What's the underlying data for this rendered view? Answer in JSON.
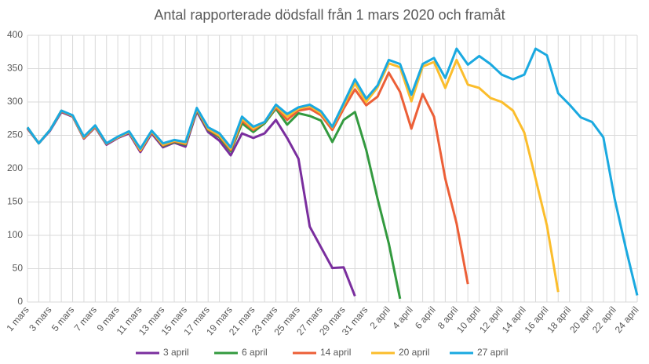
{
  "chart_data": {
    "type": "line",
    "title": "Antal rapporterade dödsfall från 1 mars 2020 och framåt",
    "categories": [
      "1 mars",
      null,
      "3 mars",
      null,
      "5 mars",
      null,
      "7 mars",
      null,
      "9 mars",
      null,
      "11 mars",
      null,
      "13 mars",
      null,
      "15 mars",
      null,
      "17 mars",
      null,
      "19 mars",
      null,
      "21 mars",
      null,
      "23 mars",
      null,
      "25 mars",
      null,
      "27 mars",
      null,
      "29 mars",
      null,
      "31 mars",
      null,
      "2 april",
      null,
      "4 april",
      null,
      "6 april",
      null,
      "8 april",
      null,
      "10 april",
      null,
      "12 april",
      null,
      "14 april",
      null,
      "16 april",
      null,
      "18 april",
      null,
      "20 april",
      null,
      "22 april",
      null,
      "24 april"
    ],
    "ylim": [
      0,
      400
    ],
    "yticks": [
      0,
      50,
      100,
      150,
      200,
      250,
      300,
      350,
      400
    ],
    "grid": true,
    "legend": "bottom",
    "series": [
      {
        "name": "3 april",
        "color": "#7a2e9e",
        "values": [
          260,
          238,
          257,
          285,
          278,
          245,
          262,
          236,
          246,
          253,
          225,
          253,
          232,
          239,
          233,
          286,
          255,
          242,
          220,
          253,
          246,
          253,
          273,
          246,
          215,
          113,
          82,
          51,
          52,
          9,
          null,
          null,
          null,
          null,
          null,
          null,
          null,
          null,
          null,
          null,
          null,
          null,
          null,
          null,
          null,
          null,
          null,
          null,
          null,
          null,
          null,
          null,
          null,
          null,
          null
        ]
      },
      {
        "name": "6 april",
        "color": "#339a3f",
        "values": [
          261,
          238,
          258,
          286,
          279,
          246,
          263,
          237,
          247,
          255,
          227,
          255,
          234,
          240,
          236,
          288,
          258,
          247,
          226,
          268,
          255,
          268,
          290,
          266,
          283,
          279,
          272,
          240,
          273,
          285,
          228,
          155,
          88,
          5,
          null,
          null,
          null,
          null,
          null,
          null,
          null,
          null,
          null,
          null,
          null,
          null,
          null,
          null,
          null,
          null,
          null,
          null,
          null,
          null,
          null
        ]
      },
      {
        "name": "14 april",
        "color": "#ec5f37",
        "values": [
          261,
          238,
          258,
          286,
          279,
          246,
          263,
          237,
          247,
          255,
          227,
          255,
          235,
          241,
          237,
          289,
          259,
          249,
          228,
          272,
          258,
          270,
          292,
          273,
          287,
          290,
          280,
          258,
          290,
          319,
          295,
          308,
          344,
          315,
          260,
          312,
          278,
          185,
          118,
          27,
          null,
          null,
          null,
          null,
          null,
          null,
          null,
          null,
          null,
          null,
          null,
          null,
          null,
          null,
          null
        ]
      },
      {
        "name": "20 april",
        "color": "#fbbd2c",
        "values": [
          262,
          238,
          258,
          287,
          279,
          247,
          264,
          238,
          247,
          255,
          228,
          256,
          236,
          242,
          238,
          290,
          260,
          250,
          230,
          275,
          260,
          270,
          294,
          278,
          290,
          294,
          283,
          262,
          295,
          328,
          300,
          322,
          358,
          352,
          301,
          353,
          360,
          321,
          363,
          326,
          321,
          306,
          300,
          287,
          254,
          185,
          115,
          15,
          null,
          null,
          null,
          null,
          null,
          null,
          null
        ]
      },
      {
        "name": "27 april",
        "color": "#1aa9e0",
        "values": [
          262,
          238,
          258,
          287,
          280,
          248,
          265,
          238,
          248,
          256,
          230,
          257,
          238,
          243,
          240,
          291,
          262,
          253,
          232,
          278,
          263,
          270,
          296,
          282,
          292,
          296,
          286,
          263,
          298,
          334,
          305,
          325,
          363,
          357,
          311,
          357,
          366,
          336,
          380,
          356,
          369,
          357,
          341,
          334,
          341,
          380,
          370,
          313,
          296,
          277,
          270,
          247,
          155,
          80,
          10
        ]
      }
    ]
  }
}
